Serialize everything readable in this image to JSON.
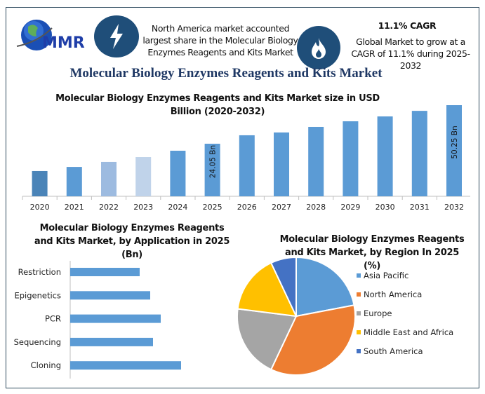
{
  "header": {
    "logo_text": "MMR",
    "info1": "North America market accounted largest share in the Molecular Biology Enzymes Reagents and Kits Market",
    "cagr_title": "11.1% CAGR",
    "cagr_text": "Global Market to grow at a CAGR of 11.1% during 2025-2032",
    "icons": [
      "lightning-icon",
      "flame-icon",
      "globe-logo-icon"
    ],
    "title": "Molecular Biology Enzymes Reagents and Kits Market"
  },
  "chart_data": [
    {
      "type": "bar",
      "title": "Molecular Biology Enzymes Reagents and Kits Market size in USD Billion (2020-2032)",
      "categories": [
        "2020",
        "2021",
        "2022",
        "2023",
        "2024",
        "2025",
        "2026",
        "2027",
        "2028",
        "2029",
        "2030",
        "2031",
        "2032"
      ],
      "values": [
        5.5,
        8.3,
        11.7,
        15.0,
        19.3,
        24.05,
        29.8,
        31.7,
        35.5,
        39.3,
        42.6,
        46.4,
        50.25
      ],
      "data_labels": {
        "2025": "24.05 Bn",
        "2032": "50.25 Bn"
      },
      "colors": [
        "#4a84b8",
        "#5b9bd5",
        "#9dbbe0",
        "#c0d3ea",
        "#5b9bd5",
        "#5b9bd5",
        "#5b9bd5",
        "#5b9bd5",
        "#5b9bd5",
        "#5b9bd5",
        "#5b9bd5",
        "#5b9bd5",
        "#5b9bd5"
      ],
      "grid": false
    },
    {
      "type": "bar",
      "orientation": "horizontal",
      "title": "Molecular Biology Enzymes Reagents and Kits Market, by Application in 2025 (Bn)",
      "categories": [
        "Restriction",
        "Epigenetics",
        "PCR",
        "Sequencing",
        "Cloning"
      ],
      "values": [
        99,
        114,
        129,
        118,
        158
      ],
      "color": "#5b9bd5"
    },
    {
      "type": "pie",
      "title": "Molecular Biology Enzymes Reagents and Kits Market, by Region In 2025 (%)",
      "labels": [
        "Asia Pacific",
        "North America",
        "Europe",
        "Middle East and Africa",
        "South America"
      ],
      "values": [
        22,
        35,
        20,
        16,
        7
      ],
      "colors": [
        "#5b9bd5",
        "#ed7d31",
        "#a5a5a5",
        "#ffc000",
        "#4472c4"
      ],
      "legend": "right"
    }
  ]
}
